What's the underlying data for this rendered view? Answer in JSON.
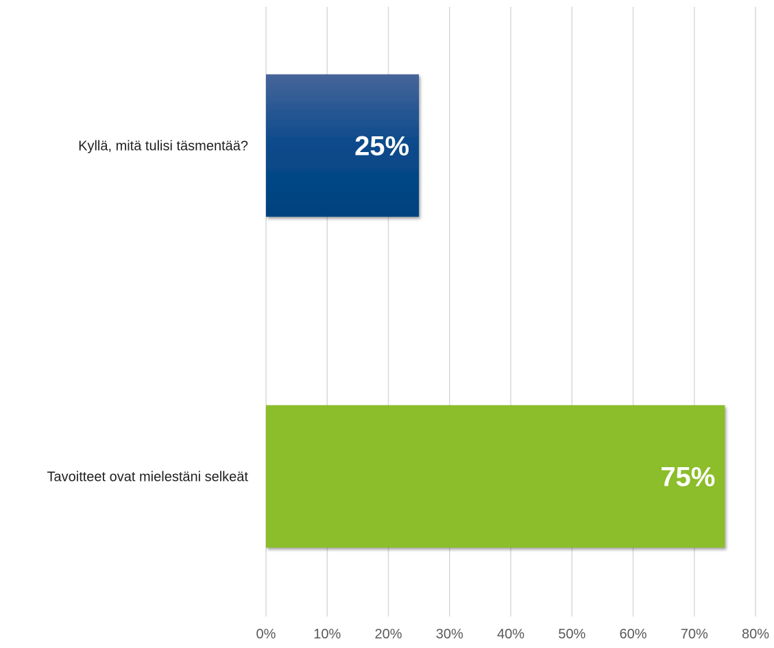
{
  "chart_data": {
    "type": "bar",
    "orientation": "horizontal",
    "title": "",
    "xlabel": "",
    "ylabel": "",
    "categories": [
      "Kyllä, mitä tulisi täsmentää?",
      "Tavoitteet ovat mielestäni selkeät"
    ],
    "values": [
      25,
      75
    ],
    "data_labels": [
      "25%",
      "75%"
    ],
    "bar_colors": [
      "#1f4f8f",
      "#8cbd2a"
    ],
    "xlim": [
      0,
      80
    ],
    "x_ticks": [
      0,
      10,
      20,
      30,
      40,
      50,
      60,
      70,
      80
    ],
    "x_tick_labels": [
      "0%",
      "10%",
      "20%",
      "30%",
      "40%",
      "50%",
      "60%",
      "70%",
      "80%"
    ],
    "grid": true,
    "legend": "none"
  }
}
